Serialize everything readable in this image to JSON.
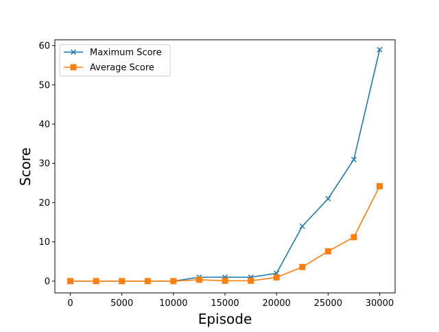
{
  "chart_data": {
    "type": "line",
    "title": "",
    "xlabel": "Episode",
    "ylabel": "Score",
    "xlim": [
      -1500,
      31500
    ],
    "ylim": [
      -3,
      61.5
    ],
    "xticks": [
      0,
      5000,
      10000,
      15000,
      20000,
      25000,
      30000
    ],
    "yticks": [
      0,
      10,
      20,
      30,
      40,
      50,
      60
    ],
    "x": [
      0,
      2500,
      5000,
      7500,
      10000,
      12500,
      15000,
      17500,
      20000,
      22500,
      25000,
      27500,
      30000
    ],
    "series": [
      {
        "name": "Maximum Score",
        "color": "#1f77b4",
        "marker": "x",
        "values": [
          0,
          0,
          0,
          0,
          0,
          1,
          1,
          1,
          2,
          14,
          21,
          31,
          59
        ]
      },
      {
        "name": "Average Score",
        "color": "#ff7f0e",
        "marker": "square",
        "values": [
          0,
          0,
          0,
          0,
          0,
          0.35,
          0.1,
          0.1,
          0.95,
          3.6,
          7.6,
          11.2,
          24.2
        ]
      }
    ],
    "legend": "upper left",
    "grid": false
  }
}
